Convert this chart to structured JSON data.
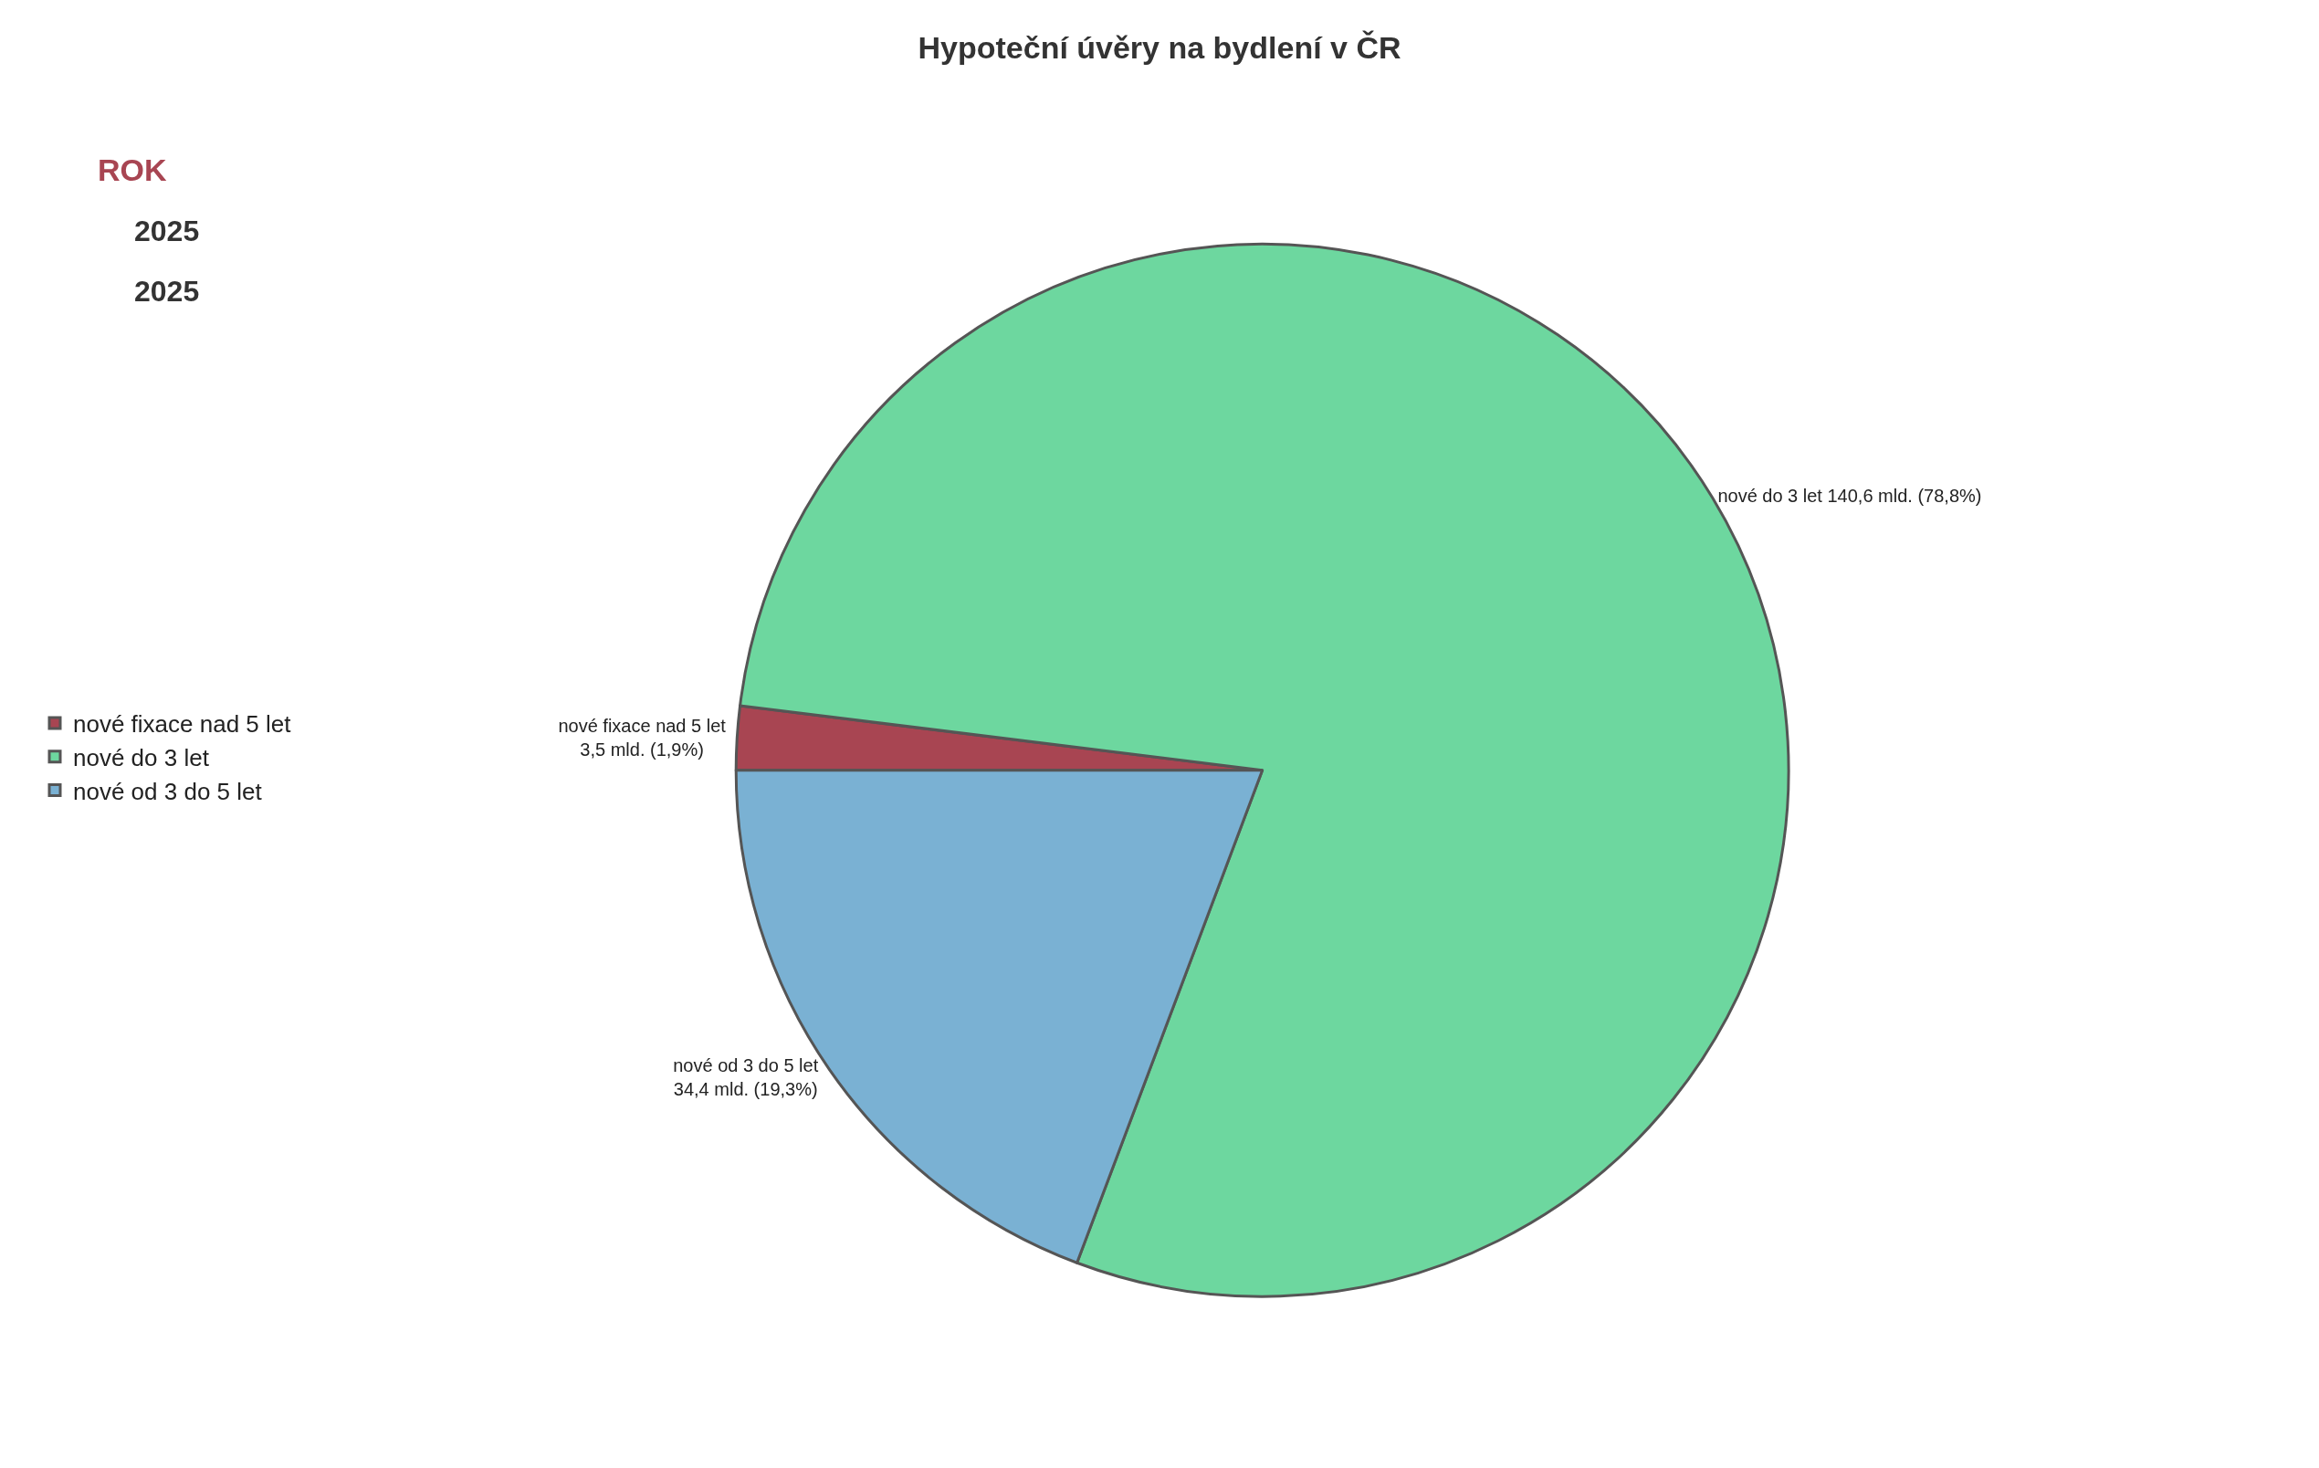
{
  "chart_data": {
    "type": "pie",
    "title": "Hypoteční úvěry na bydlení v ČR",
    "categories": [
      "nové fixace nad 5 let",
      "nové do 3 let",
      "nové od 3 do 5 let"
    ],
    "values": [
      3.5,
      140.6,
      34.4
    ],
    "colors": [
      "#a84552",
      "#6dd79f",
      "#7ab1d3"
    ],
    "value_labels": [
      "nové fixace nad 5 let\n3,5 mld. (1,9%)",
      "nové do 3 let 140,6 mld. (78,8%)",
      "nové od 3 do 5 let\n34,4 mld. (19,3%)"
    ],
    "annotations": [
      "ROK",
      "2025",
      "2025"
    ],
    "legend": "left"
  }
}
